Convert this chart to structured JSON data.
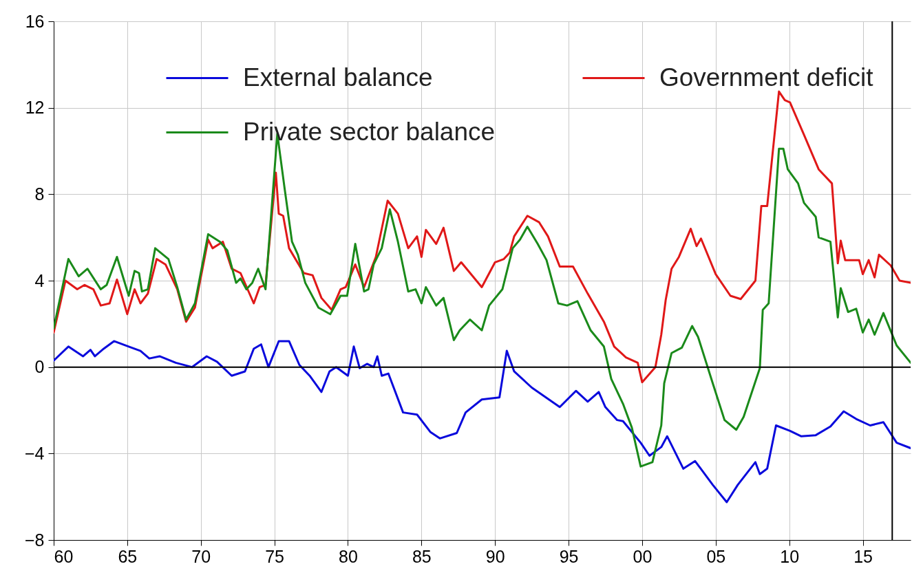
{
  "chart_data": {
    "type": "line",
    "xlim": [
      1960,
      2018.25
    ],
    "xticks": [
      {
        "value": 1960,
        "label": "60"
      },
      {
        "value": 1965,
        "label": "65"
      },
      {
        "value": 1970,
        "label": "70"
      },
      {
        "value": 1975,
        "label": "75"
      },
      {
        "value": 1980,
        "label": "80"
      },
      {
        "value": 1985,
        "label": "85"
      },
      {
        "value": 1990,
        "label": "90"
      },
      {
        "value": 1995,
        "label": "95"
      },
      {
        "value": 2000,
        "label": "00"
      },
      {
        "value": 2005,
        "label": "05"
      },
      {
        "value": 2010,
        "label": "10"
      },
      {
        "value": 2015,
        "label": "15"
      }
    ],
    "ylim": [
      -8,
      16
    ],
    "yticks": [
      -8,
      -4,
      0,
      4,
      8,
      12,
      16
    ],
    "grid": true,
    "legend": "top",
    "ref_lines": [
      {
        "axis": "y",
        "value": 0,
        "color": "#000000"
      },
      {
        "axis": "x",
        "value": 2017,
        "color": "#000000"
      }
    ],
    "series": [
      {
        "name": "External balance",
        "color": "#0a0adc",
        "x": [
          1960,
          1961,
          1962,
          1962.5,
          1962.8,
          1963.4,
          1964.1,
          1965.1,
          1965.9,
          1966.5,
          1967.2,
          1968.3,
          1969.4,
          1970.4,
          1971.1,
          1972.1,
          1973,
          1973.6,
          1974.1,
          1974.6,
          1975.3,
          1976,
          1976.7,
          1977.4,
          1978.2,
          1978.75,
          1979.2,
          1980,
          1980.4,
          1980.8,
          1981.3,
          1981.75,
          1982,
          1982.3,
          1982.75,
          1983.75,
          1984.7,
          1985.6,
          1986.25,
          1987.4,
          1988,
          1989.1,
          1990.3,
          1990.8,
          1991.3,
          1992.5,
          1994.4,
          1995.5,
          1996.3,
          1997.05,
          1997.5,
          1998.3,
          1998.7,
          1999.9,
          2000.5,
          2001.3,
          2001.7,
          2002.8,
          2003.6,
          2004.8,
          2005.75,
          2006.5,
          2007.7,
          2008,
          2008.5,
          2009.1,
          2010.05,
          2010.8,
          2011.8,
          2012.8,
          2013.7,
          2014.55,
          2015.5,
          2016.4,
          2017.3,
          2018.25
        ],
        "values": [
          0.3,
          0.95,
          0.5,
          0.8,
          0.5,
          0.85,
          1.2,
          0.95,
          0.75,
          0.4,
          0.5,
          0.2,
          0,
          0.5,
          0.25,
          -0.4,
          -0.2,
          0.85,
          1.05,
          0,
          1.2,
          1.2,
          0.1,
          -0.4,
          -1.15,
          -0.2,
          0,
          -0.4,
          0.95,
          -0.05,
          0.15,
          0,
          0.5,
          -0.4,
          -0.3,
          -2.1,
          -2.2,
          -3,
          -3.3,
          -3.05,
          -2.1,
          -1.5,
          -1.4,
          0.75,
          -0.2,
          -0.95,
          -1.85,
          -1.1,
          -1.6,
          -1.15,
          -1.85,
          -2.45,
          -2.5,
          -3.5,
          -4.1,
          -3.7,
          -3.2,
          -4.7,
          -4.35,
          -5.45,
          -6.25,
          -5.45,
          -4.4,
          -4.95,
          -4.7,
          -2.7,
          -2.95,
          -3.2,
          -3.15,
          -2.75,
          -2.05,
          -2.4,
          -2.7,
          -2.55,
          -3.5,
          -3.75
        ]
      },
      {
        "name": "Government deficit",
        "color": "#e01818",
        "x": [
          1960,
          1960.8,
          1961.6,
          1962.1,
          1962.7,
          1963.2,
          1963.8,
          1964.3,
          1965,
          1965.5,
          1965.9,
          1966.4,
          1967,
          1967.6,
          1968.4,
          1969,
          1969.6,
          1970.5,
          1970.8,
          1971.5,
          1972.1,
          1972.7,
          1973.6,
          1974,
          1974.4,
          1975.1,
          1975.3,
          1975.6,
          1976,
          1977,
          1977.6,
          1978.2,
          1978.9,
          1979.5,
          1979.85,
          1980.5,
          1981.1,
          1981.9,
          1982.7,
          1983.4,
          1984.1,
          1984.7,
          1985,
          1985.3,
          1986,
          1986.5,
          1987.2,
          1987.7,
          1989.1,
          1990,
          1990.6,
          1991,
          1991.3,
          1992.2,
          1993,
          1993.6,
          1994.4,
          1995.3,
          1996.3,
          1997.4,
          1998.1,
          1998.9,
          1999.7,
          2000,
          2000.9,
          2001.3,
          2001.6,
          2002,
          2002.5,
          2003.3,
          2003.7,
          2004,
          2005,
          2006,
          2006.7,
          2007.7,
          2008.1,
          2008.5,
          2009.3,
          2009.7,
          2010.05,
          2011,
          2012,
          2012.9,
          2013.3,
          2013.5,
          2013.8,
          2014.75,
          2015,
          2015.4,
          2015.8,
          2016.1,
          2016.9,
          2017.5,
          2018.25
        ],
        "values": [
          1.6,
          4,
          3.6,
          3.8,
          3.6,
          2.85,
          2.95,
          4.05,
          2.45,
          3.6,
          2.95,
          3.4,
          5,
          4.75,
          3.6,
          2.1,
          2.75,
          5.9,
          5.5,
          5.8,
          4.55,
          4.35,
          2.95,
          3.7,
          3.8,
          9,
          7.1,
          7,
          5.5,
          4.35,
          4.25,
          3.2,
          2.65,
          3.6,
          3.7,
          4.75,
          3.7,
          5.1,
          7.7,
          7.1,
          5.5,
          6.05,
          5.1,
          6.35,
          5.7,
          6.45,
          4.45,
          4.85,
          3.7,
          4.85,
          5,
          5.3,
          6.05,
          7,
          6.7,
          6.05,
          4.65,
          4.65,
          3.4,
          2.1,
          0.95,
          0.45,
          0.2,
          -0.7,
          0,
          1.5,
          3.1,
          4.55,
          5.1,
          6.4,
          5.6,
          5.95,
          4.3,
          3.3,
          3.15,
          4,
          7.45,
          7.45,
          12.75,
          12.35,
          12.25,
          10.75,
          9.15,
          8.5,
          4.8,
          5.85,
          4.95,
          4.95,
          4.3,
          4.95,
          4.15,
          5.2,
          4.7,
          4,
          3.9
        ]
      },
      {
        "name": "Private sector balance",
        "color": "#1a8a1a",
        "x": [
          1960,
          1961,
          1961.7,
          1962.3,
          1963.2,
          1963.6,
          1964.3,
          1965.1,
          1965.5,
          1965.8,
          1966,
          1966.4,
          1966.9,
          1967.8,
          1968.4,
          1969,
          1969.6,
          1970.5,
          1971.3,
          1971.8,
          1972.4,
          1972.7,
          1973.1,
          1973.5,
          1973.9,
          1974.4,
          1975.2,
          1975.7,
          1976.2,
          1976.6,
          1977.1,
          1978,
          1978.8,
          1979.5,
          1979.95,
          1980.5,
          1981.1,
          1981.4,
          1981.75,
          1982.3,
          1982.85,
          1983.4,
          1984.1,
          1984.6,
          1985,
          1985.3,
          1986,
          1986.5,
          1987.2,
          1987.6,
          1988.3,
          1989.1,
          1989.6,
          1990.5,
          1991.2,
          1991.7,
          1992.2,
          1992.9,
          1993.5,
          1994.3,
          1994.9,
          1995.6,
          1996.5,
          1997.4,
          1997.9,
          1998.7,
          1999.3,
          1999.9,
          2000.7,
          2001.3,
          2001.5,
          2002,
          2002.7,
          2003.4,
          2003.8,
          2004.8,
          2005.6,
          2006.4,
          2006.9,
          2008,
          2008.2,
          2008.6,
          2009.3,
          2009.6,
          2009.9,
          2010.6,
          2011,
          2011.8,
          2012,
          2012.8,
          2013.3,
          2013.5,
          2014,
          2014.55,
          2015,
          2015.4,
          2015.8,
          2016.4,
          2017.3,
          2018.25
        ],
        "values": [
          1.8,
          5,
          4.2,
          4.55,
          3.6,
          3.8,
          5.1,
          3.3,
          4.45,
          4.35,
          3.5,
          3.6,
          5.5,
          5,
          3.7,
          2.2,
          2.95,
          6.15,
          5.8,
          5.4,
          3.9,
          4.1,
          3.6,
          3.9,
          4.55,
          3.6,
          10.8,
          8.25,
          5.8,
          5.2,
          3.9,
          2.75,
          2.45,
          3.3,
          3.3,
          5.7,
          3.5,
          3.6,
          4.75,
          5.5,
          7.3,
          5.8,
          3.5,
          3.6,
          2.95,
          3.7,
          2.85,
          3.2,
          1.25,
          1.7,
          2.2,
          1.7,
          2.85,
          3.6,
          5.5,
          5.9,
          6.5,
          5.7,
          4.95,
          2.95,
          2.85,
          3.05,
          1.7,
          0.95,
          -0.55,
          -1.7,
          -2.8,
          -4.6,
          -4.4,
          -2.7,
          -0.75,
          0.65,
          0.9,
          1.9,
          1.4,
          -0.75,
          -2.45,
          -2.9,
          -2.3,
          -0.05,
          2.65,
          2.95,
          10.1,
          10.1,
          9.15,
          8.5,
          7.6,
          6.95,
          6,
          5.8,
          2.3,
          3.65,
          2.55,
          2.7,
          1.6,
          2.2,
          1.5,
          2.5,
          1,
          0.2
        ]
      }
    ]
  }
}
